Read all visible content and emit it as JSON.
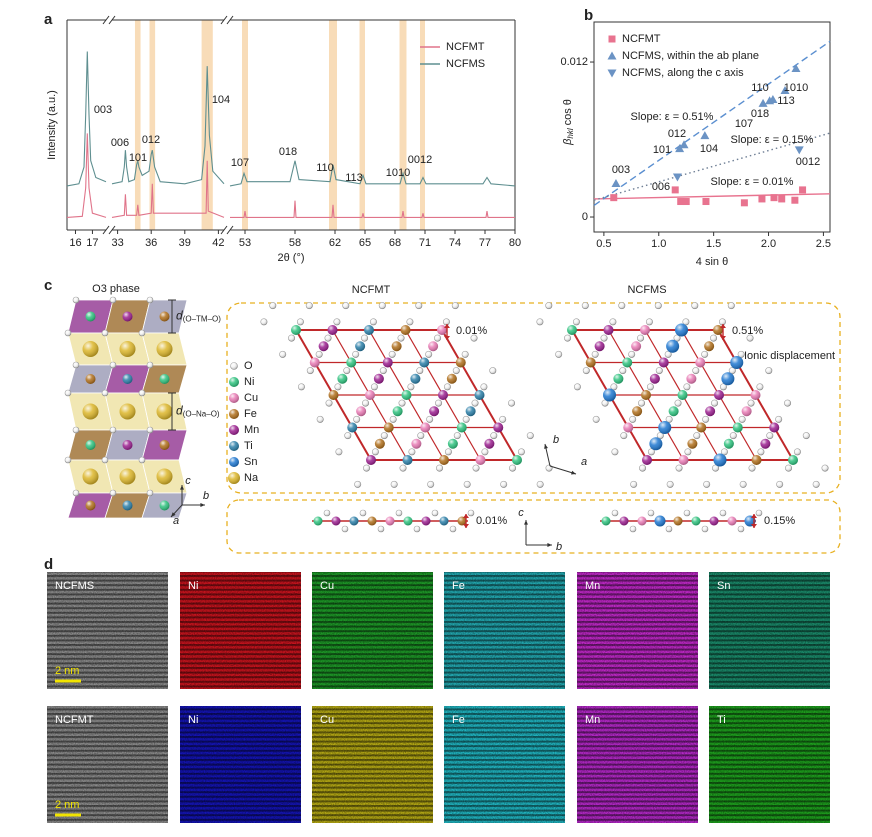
{
  "chart_data": [
    {
      "panel": "a",
      "type": "line",
      "xlabel": "2θ (°)",
      "ylabel": "Intensity (a.u.)",
      "xlim": [
        15.5,
        80
      ],
      "xsegments": [
        [
          15.5,
          17.8
        ],
        [
          32.5,
          42.5
        ],
        [
          51.5,
          80
        ]
      ],
      "xticks": [
        16,
        17,
        33,
        36,
        39,
        42,
        53,
        58,
        62,
        65,
        68,
        71,
        74,
        77,
        80
      ],
      "ylim": [
        0,
        100
      ],
      "legend": "upper right",
      "highlights": [
        [
          34.55,
          35.05
        ],
        [
          35.85,
          36.35
        ],
        [
          40.5,
          41.5
        ],
        [
          52.7,
          53.3
        ],
        [
          61.4,
          62.2
        ],
        [
          64.45,
          65.0
        ],
        [
          68.45,
          69.15
        ],
        [
          70.5,
          71.0
        ]
      ],
      "highlight_color": "#f8dcb8",
      "peak_labels": [
        "003",
        "006",
        "101",
        "012",
        "104",
        "107",
        "018",
        "110",
        "113",
        "1010",
        "0012"
      ],
      "series": [
        {
          "name": "NCFMT",
          "color": "#e0748a",
          "x": [
            15.5,
            16.4,
            16.6,
            16.7,
            16.8,
            17.0,
            17.8,
            32.5,
            33.6,
            33.7,
            33.8,
            34.7,
            34.8,
            34.9,
            36.0,
            36.1,
            36.2,
            40.9,
            41.0,
            41.1,
            42.5,
            51.5,
            52.9,
            53.0,
            53.1,
            57.9,
            58.0,
            58.1,
            61.7,
            61.8,
            61.9,
            64.7,
            64.8,
            64.9,
            68.7,
            68.8,
            68.9,
            70.7,
            70.8,
            70.9,
            77.1,
            77.2,
            77.3,
            80
          ],
          "values": [
            6,
            6.5,
            20,
            46,
            20,
            8,
            6,
            6,
            7,
            17,
            7,
            7,
            12,
            7,
            8,
            22,
            8,
            8,
            33,
            9,
            6,
            6,
            6,
            9,
            6,
            6,
            14,
            6,
            6,
            12,
            6,
            6,
            8,
            6,
            6,
            9,
            6,
            6,
            8,
            6,
            6,
            9,
            6,
            6
          ]
        },
        {
          "name": "NCFMS",
          "color": "#5f8f90",
          "x": [
            15.5,
            16.2,
            16.5,
            16.6,
            16.7,
            16.8,
            16.9,
            17.2,
            17.8,
            32.5,
            33.4,
            33.6,
            33.7,
            33.8,
            34.0,
            34.5,
            34.7,
            34.8,
            34.9,
            35.2,
            35.8,
            36.0,
            36.1,
            36.3,
            36.8,
            39,
            40.5,
            40.8,
            41.0,
            41.2,
            41.5,
            42.5,
            51.5,
            52.6,
            52.9,
            53.2,
            57.5,
            58.0,
            58.4,
            61.5,
            61.8,
            62.1,
            64.5,
            64.8,
            65.1,
            68.5,
            68.8,
            69.1,
            70.5,
            70.8,
            71.1,
            75,
            76.8,
            77.2,
            77.6,
            80
          ],
          "values": [
            21,
            22,
            30,
            55,
            85,
            55,
            33,
            25,
            23,
            22,
            23,
            30,
            38,
            30,
            23,
            24,
            31,
            33,
            30,
            26,
            28,
            36,
            38,
            30,
            23,
            22,
            24,
            40,
            78,
            45,
            28,
            22,
            21,
            22,
            27,
            23,
            23,
            33,
            24,
            23,
            31,
            24,
            22,
            26,
            22,
            22,
            27,
            22,
            22,
            25,
            22,
            22,
            22,
            25,
            22,
            21
          ]
        }
      ]
    },
    {
      "panel": "b",
      "type": "scatter",
      "xlabel": "4 sin θ",
      "ylabel": {
        "main": "β",
        "sub": "hkl",
        "rest": "cos θ"
      },
      "xlim": [
        0.41,
        2.56
      ],
      "xticks": [
        0.5,
        {
          "value": 1,
          "label": "1.0"
        },
        1.5,
        {
          "value": 2,
          "label": "2.0"
        },
        2.5
      ],
      "ylim": [
        -0.00116,
        0.0151
      ],
      "yticks": [
        0,
        0.012
      ],
      "legend": "upper left",
      "series": [
        {
          "name": "NCFMT",
          "color": "#e8738f",
          "marker": "square",
          "x": [
            0.59,
            1.15,
            1.2,
            1.25,
            1.43,
            1.78,
            1.94,
            2.05,
            2.12,
            2.24,
            2.31
          ],
          "values": [
            0.0015,
            0.0021,
            0.0012,
            0.0012,
            0.0012,
            0.0011,
            0.0014,
            0.0015,
            0.0014,
            0.0013,
            0.0021
          ],
          "fit": {
            "x": [
              0.41,
              2.56
            ],
            "values": [
              0.0014,
              0.0018
            ],
            "style": "solid",
            "color": "#e8738f",
            "label": "Slope: ε = 0.01%",
            "label_color": "#e8738f"
          }
        },
        {
          "name": "NCFMS, within the ab plane",
          "color": "#6b93c4",
          "marker": "triangle-up",
          "x": [
            0.61,
            1.19,
            1.23,
            1.42,
            1.95,
            2.01,
            2.04,
            2.15,
            2.25
          ],
          "values": [
            0.0026,
            0.0053,
            0.0056,
            0.0063,
            0.0088,
            0.009,
            0.0091,
            0.0098,
            0.0115
          ],
          "point_labels": [
            "003",
            "101",
            "012",
            "104",
            "107",
            "018",
            "113",
            "110",
            "1010"
          ],
          "fit": {
            "x": [
              0.41,
              2.56
            ],
            "values": [
              0.0009,
              0.0136
            ],
            "style": "dashed",
            "color": "#5b8fd0",
            "label": "Slope: ε = 0.51%",
            "label_color": "#5b8fd0"
          }
        },
        {
          "name": "NCFMS, along the c axis",
          "color": "#6b93c4",
          "marker": "triangle-down",
          "x": [
            1.17,
            2.28
          ],
          "values": [
            0.0031,
            0.0052
          ],
          "point_labels": [
            "006",
            "0012"
          ],
          "fit": {
            "x": [
              0.41,
              2.56
            ],
            "values": [
              0.0013,
              0.0065
            ],
            "style": "dotted",
            "color": "#6f7f95",
            "label": "Slope: ε = 0.15%",
            "label_color": "#4fb8c8"
          }
        }
      ]
    }
  ],
  "panel_c": {
    "panel": "c",
    "title": "O3 phase",
    "d_tm": {
      "main": "d",
      "sub": "(O–TM–O)"
    },
    "d_na": {
      "main": "d",
      "sub": "(O–Na–O)"
    },
    "legend": [
      {
        "label": "O",
        "color": "#f4f4f4"
      },
      {
        "label": "Ni",
        "color": "#2ec27e"
      },
      {
        "label": "Cu",
        "color": "#e87ab4"
      },
      {
        "label": "Fe",
        "color": "#b06f1c"
      },
      {
        "label": "Mn",
        "color": "#9b1f8f"
      },
      {
        "label": "Ti",
        "color": "#2b7fa8"
      },
      {
        "label": "Sn",
        "color": "#1f78d1"
      },
      {
        "label": "Na",
        "color": "#dcb62a"
      }
    ],
    "axes_left": [
      "c",
      "b",
      "a"
    ],
    "axes_plane": [
      "b",
      "a"
    ],
    "axes_chain": [
      "c",
      "b"
    ],
    "lattices": [
      {
        "title": "NCFMT",
        "strain": "0.01%",
        "chain_strain": "0.01%",
        "atoms": [
          "Ni",
          "Fe",
          "Mn",
          "Cu",
          "Ti"
        ]
      },
      {
        "title": "NCFMS",
        "strain": "0.51%",
        "chain_strain": "0.15%",
        "note": "Ionic displacement",
        "atoms": [
          "Ni",
          "Sn",
          "Mn",
          "Fe",
          "Cu"
        ]
      }
    ]
  },
  "panel_d": {
    "panel": "d",
    "scale_bar": "2 nm",
    "rows": [
      [
        {
          "label": "NCFMS",
          "color": "#8a8a8a"
        },
        {
          "label": "Ni",
          "color": "#c8141e"
        },
        {
          "label": "Cu",
          "color": "#1e9a28"
        },
        {
          "label": "Fe",
          "color": "#22a8b0"
        },
        {
          "label": "Mn",
          "color": "#c028c8"
        },
        {
          "label": "Sn",
          "color": "#1a8a6a"
        }
      ],
      [
        {
          "label": "NCFMT",
          "color": "#8a8a8a"
        },
        {
          "label": "Ni",
          "color": "#1414b4"
        },
        {
          "label": "Cu",
          "color": "#b4a814"
        },
        {
          "label": "Fe",
          "color": "#20b4c0"
        },
        {
          "label": "Mn",
          "color": "#b428c8"
        },
        {
          "label": "Ti",
          "color": "#1ea01e"
        }
      ]
    ]
  }
}
